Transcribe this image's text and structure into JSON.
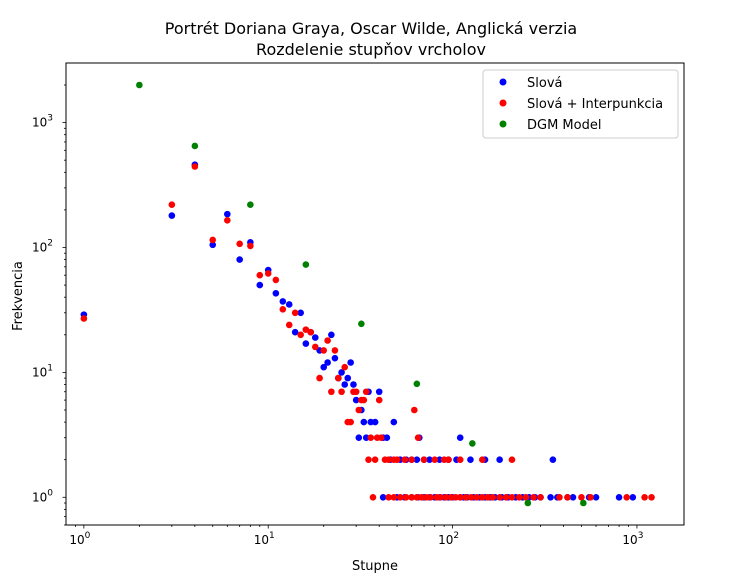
{
  "chart_data": {
    "type": "scatter",
    "title": "Portrét Doriana Graya, Oscar Wilde, Anglická verzia",
    "subtitle": "Rozdelenie stupňov vrcholov",
    "xlabel": "Stupne",
    "ylabel": "Frekvencia",
    "xscale": "log",
    "yscale": "log",
    "xlim": [
      0.8,
      1800
    ],
    "ylim": [
      0.6,
      3000
    ],
    "x_ticks": [
      {
        "value": 1,
        "base": "10",
        "exp": "0"
      },
      {
        "value": 10,
        "base": "10",
        "exp": "1"
      },
      {
        "value": 100,
        "base": "10",
        "exp": "2"
      },
      {
        "value": 1000,
        "base": "10",
        "exp": "3"
      }
    ],
    "y_ticks": [
      {
        "value": 1,
        "base": "10",
        "exp": "0"
      },
      {
        "value": 10,
        "base": "10",
        "exp": "1"
      },
      {
        "value": 100,
        "base": "10",
        "exp": "2"
      },
      {
        "value": 1000,
        "base": "10",
        "exp": "3"
      }
    ],
    "grid": false,
    "legend_position": "top-right",
    "series": [
      {
        "name": "Slová",
        "color": "#0000ff",
        "points": [
          [
            1,
            29
          ],
          [
            3,
            180
          ],
          [
            4,
            460
          ],
          [
            5,
            105
          ],
          [
            6,
            185
          ],
          [
            7,
            80
          ],
          [
            8,
            110
          ],
          [
            9,
            50
          ],
          [
            10,
            66
          ],
          [
            11,
            43
          ],
          [
            12,
            37
          ],
          [
            13,
            35
          ],
          [
            14,
            21
          ],
          [
            15,
            30
          ],
          [
            16,
            17
          ],
          [
            17,
            21
          ],
          [
            18,
            19
          ],
          [
            19,
            15
          ],
          [
            20,
            11
          ],
          [
            21,
            12
          ],
          [
            22,
            20
          ],
          [
            23,
            13
          ],
          [
            24,
            9
          ],
          [
            25,
            10
          ],
          [
            26,
            8
          ],
          [
            27,
            9
          ],
          [
            28,
            12
          ],
          [
            29,
            8
          ],
          [
            30,
            6
          ],
          [
            31,
            3
          ],
          [
            32,
            5
          ],
          [
            33,
            4
          ],
          [
            34,
            3
          ],
          [
            35,
            7
          ],
          [
            36,
            4
          ],
          [
            38,
            4
          ],
          [
            40,
            7
          ],
          [
            42,
            3
          ],
          [
            44,
            3
          ],
          [
            46,
            2
          ],
          [
            48,
            4
          ],
          [
            52,
            2
          ],
          [
            56,
            2
          ],
          [
            60,
            2
          ],
          [
            64,
            2
          ],
          [
            66,
            3
          ],
          [
            70,
            2
          ],
          [
            75,
            2
          ],
          [
            85,
            2
          ],
          [
            95,
            2
          ],
          [
            105,
            2
          ],
          [
            110,
            3
          ],
          [
            125,
            2
          ],
          [
            150,
            2
          ],
          [
            180,
            2
          ],
          [
            350,
            2
          ],
          [
            42,
            1
          ],
          [
            50,
            1
          ],
          [
            55,
            1
          ],
          [
            60,
            1
          ],
          [
            65,
            1
          ],
          [
            70,
            1
          ],
          [
            75,
            1
          ],
          [
            80,
            1
          ],
          [
            85,
            1
          ],
          [
            90,
            1
          ],
          [
            95,
            1
          ],
          [
            100,
            1
          ],
          [
            110,
            1
          ],
          [
            115,
            1
          ],
          [
            120,
            1
          ],
          [
            130,
            1
          ],
          [
            140,
            1
          ],
          [
            150,
            1
          ],
          [
            160,
            1
          ],
          [
            170,
            1
          ],
          [
            185,
            1
          ],
          [
            200,
            1
          ],
          [
            220,
            1
          ],
          [
            240,
            1
          ],
          [
            260,
            1
          ],
          [
            280,
            1
          ],
          [
            300,
            1
          ],
          [
            340,
            1
          ],
          [
            370,
            1
          ],
          [
            420,
            1
          ],
          [
            450,
            1
          ],
          [
            550,
            1
          ],
          [
            600,
            1
          ],
          [
            800,
            1
          ],
          [
            950,
            1
          ]
        ]
      },
      {
        "name": "Slová + Interpunkcia",
        "color": "#ff0000",
        "points": [
          [
            1,
            27
          ],
          [
            3,
            220
          ],
          [
            4,
            445
          ],
          [
            5,
            115
          ],
          [
            6,
            165
          ],
          [
            7,
            107
          ],
          [
            8,
            103
          ],
          [
            9,
            60
          ],
          [
            10,
            62
          ],
          [
            11,
            55
          ],
          [
            12,
            32
          ],
          [
            13,
            24
          ],
          [
            14,
            30
          ],
          [
            15,
            20
          ],
          [
            16,
            22
          ],
          [
            17,
            21
          ],
          [
            18,
            16
          ],
          [
            19,
            9
          ],
          [
            20,
            15
          ],
          [
            21,
            18
          ],
          [
            22,
            7
          ],
          [
            23,
            15
          ],
          [
            24,
            9
          ],
          [
            25,
            7
          ],
          [
            26,
            11
          ],
          [
            27,
            4
          ],
          [
            28,
            4
          ],
          [
            29,
            7
          ],
          [
            30,
            7
          ],
          [
            31,
            5
          ],
          [
            32,
            6
          ],
          [
            33,
            6
          ],
          [
            34,
            7
          ],
          [
            35,
            2
          ],
          [
            36,
            3
          ],
          [
            38,
            2
          ],
          [
            39,
            3
          ],
          [
            40,
            6
          ],
          [
            41,
            3
          ],
          [
            43,
            2
          ],
          [
            45,
            2
          ],
          [
            48,
            2
          ],
          [
            50,
            2
          ],
          [
            55,
            2
          ],
          [
            60,
            2
          ],
          [
            62,
            5
          ],
          [
            65,
            3
          ],
          [
            70,
            2
          ],
          [
            80,
            2
          ],
          [
            90,
            2
          ],
          [
            95,
            2
          ],
          [
            110,
            2
          ],
          [
            145,
            2
          ],
          [
            210,
            2
          ],
          [
            37,
            1
          ],
          [
            45,
            1
          ],
          [
            48,
            1
          ],
          [
            52,
            1
          ],
          [
            56,
            1
          ],
          [
            60,
            1
          ],
          [
            64,
            1
          ],
          [
            68,
            1
          ],
          [
            72,
            1
          ],
          [
            76,
            1
          ],
          [
            82,
            1
          ],
          [
            86,
            1
          ],
          [
            92,
            1
          ],
          [
            98,
            1
          ],
          [
            104,
            1
          ],
          [
            110,
            1
          ],
          [
            118,
            1
          ],
          [
            126,
            1
          ],
          [
            135,
            1
          ],
          [
            145,
            1
          ],
          [
            155,
            1
          ],
          [
            165,
            1
          ],
          [
            180,
            1
          ],
          [
            195,
            1
          ],
          [
            210,
            1
          ],
          [
            230,
            1
          ],
          [
            250,
            1
          ],
          [
            275,
            1
          ],
          [
            300,
            1
          ],
          [
            380,
            1
          ],
          [
            420,
            1
          ],
          [
            500,
            1
          ],
          [
            560,
            1
          ],
          [
            880,
            1
          ],
          [
            1100,
            1
          ],
          [
            1200,
            1
          ]
        ]
      },
      {
        "name": "DGM Model",
        "color": "#008000",
        "points": [
          [
            2,
            2000
          ],
          [
            4,
            650
          ],
          [
            8,
            220
          ],
          [
            16,
            73
          ],
          [
            32,
            24.5
          ],
          [
            64,
            8.1
          ],
          [
            128,
            2.7
          ],
          [
            256,
            0.9
          ],
          [
            512,
            0.9
          ]
        ]
      }
    ]
  }
}
